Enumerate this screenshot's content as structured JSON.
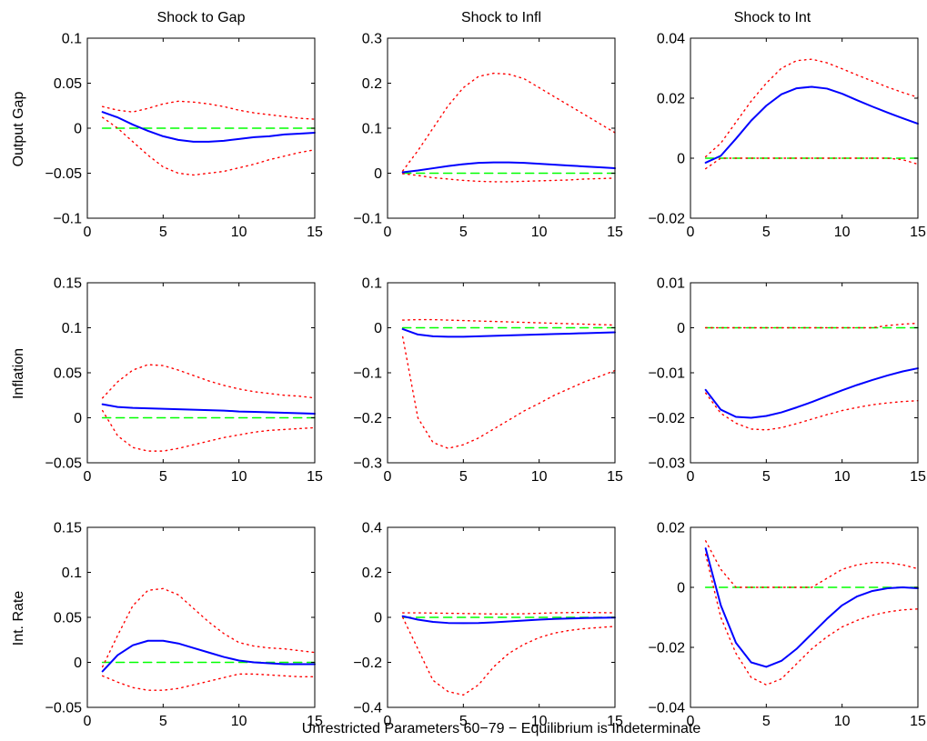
{
  "figure": {
    "caption": "Unrestricted Parameters 60−79 − Equilibrium is Indeterminate",
    "column_titles": [
      "Shock to Gap",
      "Shock to Infl",
      "Shock to Int"
    ],
    "row_labels": [
      "Output Gap",
      "Inflation",
      "Int. Rate"
    ],
    "colors": {
      "response": "#0000ff",
      "band": "#ff0000",
      "zero": "#00ff00",
      "axes": "#000000"
    }
  },
  "chart_data": [
    {
      "type": "line",
      "row": 0,
      "col": 0,
      "xlim": [
        0,
        15
      ],
      "ylim": [
        -0.1,
        0.1
      ],
      "xticks": [
        0,
        5,
        10,
        15
      ],
      "xtick_labels": [
        "0",
        "5",
        "10",
        "15"
      ],
      "yticks": [
        -0.1,
        -0.05,
        0,
        0.05,
        0.1
      ],
      "ytick_labels": [
        "−0.1",
        "−0.05",
        "0",
        "0.05",
        "0.1"
      ],
      "x": [
        1,
        2,
        3,
        4,
        5,
        6,
        7,
        8,
        9,
        10,
        11,
        12,
        13,
        14,
        15
      ],
      "series": [
        {
          "role": "response",
          "values": [
            0.018,
            0.012,
            0.004,
            -0.003,
            -0.009,
            -0.013,
            -0.015,
            -0.015,
            -0.014,
            -0.012,
            -0.01,
            -0.009,
            -0.007,
            -0.006,
            -0.005
          ]
        },
        {
          "role": "upper",
          "values": [
            0.024,
            0.02,
            0.018,
            0.022,
            0.027,
            0.03,
            0.029,
            0.027,
            0.024,
            0.02,
            0.017,
            0.015,
            0.013,
            0.011,
            0.01
          ]
        },
        {
          "role": "lower",
          "values": [
            0.012,
            0.0,
            -0.015,
            -0.03,
            -0.043,
            -0.05,
            -0.052,
            -0.05,
            -0.048,
            -0.044,
            -0.04,
            -0.035,
            -0.031,
            -0.027,
            -0.024
          ]
        },
        {
          "role": "zero",
          "values": [
            0,
            0,
            0,
            0,
            0,
            0,
            0,
            0,
            0,
            0,
            0,
            0,
            0,
            0,
            0
          ]
        }
      ]
    },
    {
      "type": "line",
      "row": 0,
      "col": 1,
      "xlim": [
        0,
        15
      ],
      "ylim": [
        -0.1,
        0.3
      ],
      "xticks": [
        0,
        5,
        10,
        15
      ],
      "xtick_labels": [
        "0",
        "5",
        "10",
        "15"
      ],
      "yticks": [
        -0.1,
        0,
        0.1,
        0.2,
        0.3
      ],
      "ytick_labels": [
        "−0.1",
        "0",
        "0.1",
        "0.2",
        "0.3"
      ],
      "x": [
        1,
        2,
        3,
        4,
        5,
        6,
        7,
        8,
        9,
        10,
        11,
        12,
        13,
        14,
        15
      ],
      "series": [
        {
          "role": "response",
          "values": [
            0.002,
            0.006,
            0.011,
            0.016,
            0.02,
            0.023,
            0.024,
            0.024,
            0.023,
            0.021,
            0.019,
            0.017,
            0.015,
            0.013,
            0.011
          ]
        },
        {
          "role": "upper",
          "values": [
            0.005,
            0.05,
            0.1,
            0.15,
            0.19,
            0.215,
            0.222,
            0.22,
            0.21,
            0.19,
            0.17,
            0.15,
            0.13,
            0.11,
            0.09
          ]
        },
        {
          "role": "lower",
          "values": [
            -0.001,
            -0.005,
            -0.01,
            -0.013,
            -0.016,
            -0.018,
            -0.019,
            -0.019,
            -0.018,
            -0.017,
            -0.016,
            -0.015,
            -0.013,
            -0.012,
            -0.011
          ]
        },
        {
          "role": "zero",
          "values": [
            0,
            0,
            0,
            0,
            0,
            0,
            0,
            0,
            0,
            0,
            0,
            0,
            0,
            0,
            0
          ]
        }
      ]
    },
    {
      "type": "line",
      "row": 0,
      "col": 2,
      "xlim": [
        0,
        15
      ],
      "ylim": [
        -0.02,
        0.04
      ],
      "xticks": [
        0,
        5,
        10,
        15
      ],
      "xtick_labels": [
        "0",
        "5",
        "10",
        "15"
      ],
      "yticks": [
        -0.02,
        0,
        0.02,
        0.04
      ],
      "ytick_labels": [
        "−0.02",
        "0",
        "0.02",
        "0.04"
      ],
      "x": [
        1,
        2,
        3,
        4,
        5,
        6,
        7,
        8,
        9,
        10,
        11,
        12,
        13,
        14,
        15
      ],
      "series": [
        {
          "role": "response",
          "values": [
            -0.0015,
            0.0008,
            0.0065,
            0.0125,
            0.0175,
            0.0213,
            0.0233,
            0.0238,
            0.0232,
            0.0215,
            0.0193,
            0.0172,
            0.0152,
            0.0133,
            0.0115
          ]
        },
        {
          "role": "upper",
          "values": [
            0.0005,
            0.005,
            0.012,
            0.019,
            0.025,
            0.03,
            0.0325,
            0.033,
            0.0318,
            0.0298,
            0.0277,
            0.0257,
            0.0237,
            0.0219,
            0.0203
          ]
        },
        {
          "role": "lower",
          "values": [
            -0.0035,
            0.0,
            0.0,
            0.0,
            0.0,
            0.0,
            0.0,
            0.0,
            0.0,
            0.0,
            0.0,
            0.0,
            0.0,
            -0.0005,
            -0.002
          ]
        },
        {
          "role": "zero",
          "values": [
            0,
            0,
            0,
            0,
            0,
            0,
            0,
            0,
            0,
            0,
            0,
            0,
            0,
            0,
            0
          ]
        }
      ]
    },
    {
      "type": "line",
      "row": 1,
      "col": 0,
      "xlim": [
        0,
        15
      ],
      "ylim": [
        -0.05,
        0.15
      ],
      "xticks": [
        0,
        5,
        10,
        15
      ],
      "xtick_labels": [
        "0",
        "5",
        "10",
        "15"
      ],
      "yticks": [
        -0.05,
        0,
        0.05,
        0.1,
        0.15
      ],
      "ytick_labels": [
        "−0.05",
        "0",
        "0.05",
        "0.1",
        "0.15"
      ],
      "x": [
        1,
        2,
        3,
        4,
        5,
        6,
        7,
        8,
        9,
        10,
        11,
        12,
        13,
        14,
        15
      ],
      "series": [
        {
          "role": "response",
          "values": [
            0.015,
            0.012,
            0.011,
            0.0105,
            0.01,
            0.0095,
            0.009,
            0.0085,
            0.008,
            0.007,
            0.0065,
            0.006,
            0.0055,
            0.005,
            0.0045
          ]
        },
        {
          "role": "upper",
          "values": [
            0.022,
            0.04,
            0.053,
            0.059,
            0.058,
            0.053,
            0.047,
            0.041,
            0.036,
            0.032,
            0.029,
            0.027,
            0.025,
            0.024,
            0.022
          ]
        },
        {
          "role": "lower",
          "values": [
            0.008,
            -0.02,
            -0.033,
            -0.037,
            -0.037,
            -0.034,
            -0.03,
            -0.026,
            -0.022,
            -0.019,
            -0.016,
            -0.014,
            -0.013,
            -0.012,
            -0.011
          ]
        },
        {
          "role": "zero",
          "values": [
            0,
            0,
            0,
            0,
            0,
            0,
            0,
            0,
            0,
            0,
            0,
            0,
            0,
            0,
            0
          ]
        }
      ]
    },
    {
      "type": "line",
      "row": 1,
      "col": 1,
      "xlim": [
        0,
        15
      ],
      "ylim": [
        -0.3,
        0.1
      ],
      "xticks": [
        0,
        5,
        10,
        15
      ],
      "xtick_labels": [
        "0",
        "5",
        "10",
        "15"
      ],
      "yticks": [
        -0.3,
        -0.2,
        -0.1,
        0,
        0.1
      ],
      "ytick_labels": [
        "−0.3",
        "−0.2",
        "−0.1",
        "0",
        "0.1"
      ],
      "x": [
        1,
        2,
        3,
        4,
        5,
        6,
        7,
        8,
        9,
        10,
        11,
        12,
        13,
        14,
        15
      ],
      "series": [
        {
          "role": "response",
          "values": [
            -0.003,
            -0.015,
            -0.019,
            -0.02,
            -0.02,
            -0.019,
            -0.018,
            -0.017,
            -0.016,
            -0.015,
            -0.014,
            -0.013,
            -0.012,
            -0.011,
            -0.01
          ]
        },
        {
          "role": "upper",
          "values": [
            0.017,
            0.018,
            0.018,
            0.017,
            0.016,
            0.015,
            0.014,
            0.013,
            0.012,
            0.011,
            0.01,
            0.009,
            0.008,
            0.007,
            0.006
          ]
        },
        {
          "role": "lower",
          "values": [
            -0.02,
            -0.2,
            -0.255,
            -0.268,
            -0.26,
            -0.245,
            -0.225,
            -0.205,
            -0.185,
            -0.168,
            -0.15,
            -0.135,
            -0.12,
            -0.108,
            -0.095
          ]
        },
        {
          "role": "zero",
          "values": [
            0,
            0,
            0,
            0,
            0,
            0,
            0,
            0,
            0,
            0,
            0,
            0,
            0,
            0,
            0
          ]
        }
      ]
    },
    {
      "type": "line",
      "row": 1,
      "col": 2,
      "xlim": [
        0,
        15
      ],
      "ylim": [
        -0.03,
        0.01
      ],
      "xticks": [
        0,
        5,
        10,
        15
      ],
      "xtick_labels": [
        "0",
        "5",
        "10",
        "15"
      ],
      "yticks": [
        -0.03,
        -0.02,
        -0.01,
        0,
        0.01
      ],
      "ytick_labels": [
        "−0.03",
        "−0.02",
        "−0.01",
        "0",
        "0.01"
      ],
      "x": [
        1,
        2,
        3,
        4,
        5,
        6,
        7,
        8,
        9,
        10,
        11,
        12,
        13,
        14,
        15
      ],
      "series": [
        {
          "role": "response",
          "values": [
            -0.0138,
            -0.0182,
            -0.0198,
            -0.02,
            -0.0196,
            -0.0188,
            -0.0177,
            -0.0165,
            -0.0152,
            -0.0139,
            -0.0127,
            -0.0116,
            -0.0106,
            -0.0097,
            -0.009
          ]
        },
        {
          "role": "upper",
          "values": [
            0.0,
            0.0,
            0.0,
            0.0,
            0.0,
            0.0,
            0.0,
            0.0,
            0.0,
            0.0,
            0.0,
            0.0,
            0.0005,
            0.0008,
            0.001
          ]
        },
        {
          "role": "lower",
          "values": [
            -0.0145,
            -0.019,
            -0.0212,
            -0.0225,
            -0.0227,
            -0.0222,
            -0.0213,
            -0.0203,
            -0.0193,
            -0.0184,
            -0.0177,
            -0.0171,
            -0.0167,
            -0.0164,
            -0.0162
          ]
        },
        {
          "role": "zero",
          "values": [
            0,
            0,
            0,
            0,
            0,
            0,
            0,
            0,
            0,
            0,
            0,
            0,
            0,
            0,
            0
          ]
        }
      ]
    },
    {
      "type": "line",
      "row": 2,
      "col": 0,
      "xlim": [
        0,
        15
      ],
      "ylim": [
        -0.05,
        0.15
      ],
      "xticks": [
        0,
        5,
        10,
        15
      ],
      "xtick_labels": [
        "0",
        "5",
        "10",
        "15"
      ],
      "yticks": [
        -0.05,
        0,
        0.05,
        0.1,
        0.15
      ],
      "ytick_labels": [
        "−0.05",
        "0",
        "0.05",
        "0.1",
        "0.15"
      ],
      "x": [
        1,
        2,
        3,
        4,
        5,
        6,
        7,
        8,
        9,
        10,
        11,
        12,
        13,
        14,
        15
      ],
      "series": [
        {
          "role": "response",
          "values": [
            -0.01,
            0.008,
            0.019,
            0.024,
            0.024,
            0.021,
            0.016,
            0.011,
            0.006,
            0.002,
            0.0,
            -0.001,
            -0.002,
            -0.002,
            -0.002
          ]
        },
        {
          "role": "upper",
          "values": [
            -0.005,
            0.03,
            0.063,
            0.08,
            0.082,
            0.075,
            0.06,
            0.045,
            0.032,
            0.022,
            0.018,
            0.016,
            0.015,
            0.013,
            0.011
          ]
        },
        {
          "role": "lower",
          "values": [
            -0.015,
            -0.022,
            -0.028,
            -0.031,
            -0.031,
            -0.029,
            -0.025,
            -0.021,
            -0.017,
            -0.013,
            -0.013,
            -0.014,
            -0.015,
            -0.016,
            -0.016
          ]
        },
        {
          "role": "zero",
          "values": [
            0,
            0,
            0,
            0,
            0,
            0,
            0,
            0,
            0,
            0,
            0,
            0,
            0,
            0,
            0
          ]
        }
      ]
    },
    {
      "type": "line",
      "row": 2,
      "col": 1,
      "xlim": [
        0,
        15
      ],
      "ylim": [
        -0.4,
        0.4
      ],
      "xticks": [
        0,
        5,
        10,
        15
      ],
      "xtick_labels": [
        "0",
        "5",
        "10",
        "15"
      ],
      "yticks": [
        -0.4,
        -0.2,
        0,
        0.2,
        0.4
      ],
      "ytick_labels": [
        "−0.4",
        "−0.2",
        "0",
        "0.2",
        "0.4"
      ],
      "x": [
        1,
        2,
        3,
        4,
        5,
        6,
        7,
        8,
        9,
        10,
        11,
        12,
        13,
        14,
        15
      ],
      "series": [
        {
          "role": "response",
          "values": [
            0.005,
            -0.01,
            -0.02,
            -0.025,
            -0.026,
            -0.025,
            -0.022,
            -0.018,
            -0.014,
            -0.01,
            -0.007,
            -0.005,
            -0.003,
            -0.002,
            -0.001
          ]
        },
        {
          "role": "upper",
          "values": [
            0.02,
            0.02,
            0.019,
            0.018,
            0.017,
            0.016,
            0.015,
            0.015,
            0.016,
            0.018,
            0.02,
            0.021,
            0.022,
            0.021,
            0.02
          ]
        },
        {
          "role": "lower",
          "values": [
            0.0,
            -0.14,
            -0.28,
            -0.33,
            -0.345,
            -0.3,
            -0.22,
            -0.16,
            -0.12,
            -0.09,
            -0.07,
            -0.058,
            -0.05,
            -0.045,
            -0.04
          ]
        },
        {
          "role": "zero",
          "values": [
            0,
            0,
            0,
            0,
            0,
            0,
            0,
            0,
            0,
            0,
            0,
            0,
            0,
            0,
            0
          ]
        }
      ]
    },
    {
      "type": "line",
      "row": 2,
      "col": 2,
      "xlim": [
        0,
        15
      ],
      "ylim": [
        -0.04,
        0.02
      ],
      "xticks": [
        0,
        5,
        10,
        15
      ],
      "xtick_labels": [
        "0",
        "5",
        "10",
        "15"
      ],
      "yticks": [
        -0.04,
        -0.02,
        0,
        0.02
      ],
      "ytick_labels": [
        "−0.04",
        "−0.02",
        "0",
        "0.02"
      ],
      "x": [
        1,
        2,
        3,
        4,
        5,
        6,
        7,
        8,
        9,
        10,
        11,
        12,
        13,
        14,
        15
      ],
      "series": [
        {
          "role": "response",
          "values": [
            0.013,
            -0.006,
            -0.0185,
            -0.025,
            -0.0265,
            -0.0245,
            -0.0205,
            -0.0155,
            -0.0105,
            -0.006,
            -0.003,
            -0.0012,
            -0.0003,
            0.0,
            -0.0003
          ]
        },
        {
          "role": "upper",
          "values": [
            0.0155,
            0.006,
            0.0,
            0.0,
            0.0,
            0.0,
            0.0,
            0.0,
            0.003,
            0.006,
            0.0075,
            0.0083,
            0.0082,
            0.0075,
            0.0062
          ]
        },
        {
          "role": "lower",
          "values": [
            0.011,
            -0.01,
            -0.022,
            -0.03,
            -0.0325,
            -0.0305,
            -0.0255,
            -0.0205,
            -0.0165,
            -0.0132,
            -0.011,
            -0.0093,
            -0.0082,
            -0.0075,
            -0.0072
          ]
        },
        {
          "role": "zero",
          "values": [
            0,
            0,
            0,
            0,
            0,
            0,
            0,
            0,
            0,
            0,
            0,
            0,
            0,
            0,
            0
          ]
        }
      ]
    }
  ]
}
